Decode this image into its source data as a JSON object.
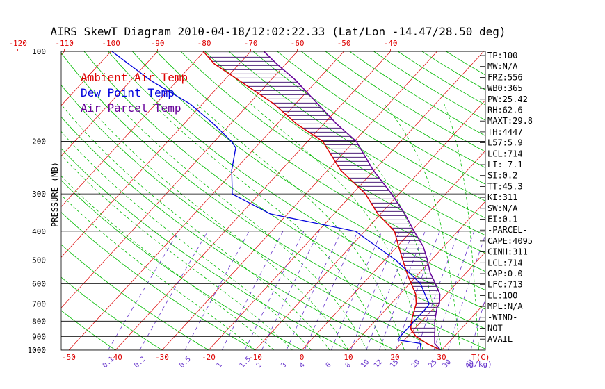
{
  "chart_data": {
    "type": "line",
    "title": "AIRS SkewT Diagram 2010-04-18/12:02:22.33 (Lat/Lon -14.47/28.50 deg)",
    "ylabel": "PRESSURE (MB)",
    "ylim": [
      1000,
      100
    ],
    "y_scale": "log",
    "xlim_bottom": [
      -50,
      40
    ],
    "pressure_ticks": [
      100,
      200,
      300,
      400,
      500,
      600,
      700,
      800,
      900,
      1000
    ],
    "top_temp_ticks": [
      "-120",
      "-110",
      "-100",
      "-90",
      "-80",
      "-70",
      "-60",
      "-50",
      "-40"
    ],
    "bottom_temp_ticks": [
      "-50",
      "-40",
      "-30",
      "-20",
      "-10",
      "0",
      "10",
      "20",
      "30"
    ],
    "bottom_temp_unit": "T(C)",
    "mixing_ratio_ticks": [
      "0.1",
      "0.2",
      "0.5",
      "1",
      "1.5",
      "2",
      "3",
      "4",
      "6",
      "8",
      "10",
      "12",
      "15",
      "20",
      "25",
      "30",
      "40"
    ],
    "mixing_ratio_unit": "(g/kg)",
    "legend": [
      {
        "label": "Ambient Air Temp",
        "color": "#dd0000"
      },
      {
        "label": "Dew Point Temp",
        "color": "#0000dd"
      },
      {
        "label": "Air Parcel Temp",
        "color": "#660099"
      }
    ],
    "series": [
      {
        "color": "#dd0000",
        "points": [
          [
            1000,
            29.8
          ],
          [
            950,
            25.5
          ],
          [
            900,
            21.8
          ],
          [
            850,
            19.2
          ],
          [
            800,
            17.8
          ],
          [
            750,
            16.6
          ],
          [
            700,
            15.4
          ],
          [
            650,
            13.4
          ],
          [
            600,
            10.4
          ],
          [
            550,
            7.2
          ],
          [
            500,
            3.9
          ],
          [
            450,
            0.3
          ],
          [
            400,
            -3.6
          ],
          [
            350,
            -10.6
          ],
          [
            300,
            -17.2
          ],
          [
            250,
            -27.2
          ],
          [
            200,
            -36.8
          ],
          [
            175,
            -45.8
          ],
          [
            150,
            -54.6
          ],
          [
            125,
            -66.8
          ],
          [
            110,
            -75.4
          ],
          [
            100,
            -80.2
          ]
        ]
      },
      {
        "color": "#0000dd",
        "points": [
          [
            1000,
            25.6
          ],
          [
            950,
            24.1
          ],
          [
            925,
            18.6
          ],
          [
            900,
            18.4
          ],
          [
            850,
            18.4
          ],
          [
            800,
            18.4
          ],
          [
            720,
            18.4
          ],
          [
            700,
            18.2
          ],
          [
            650,
            15.4
          ],
          [
            600,
            12.4
          ],
          [
            550,
            7.7
          ],
          [
            500,
            2.4
          ],
          [
            450,
            -4.4
          ],
          [
            400,
            -12.0
          ],
          [
            350,
            -33.7
          ],
          [
            300,
            -45.8
          ],
          [
            250,
            -50.6
          ],
          [
            210,
            -54.2
          ],
          [
            200,
            -56.4
          ],
          [
            175,
            -63.6
          ],
          [
            150,
            -72.6
          ],
          [
            125,
            -85.8
          ],
          [
            100,
            -99.8
          ]
        ]
      },
      {
        "color": "#660099",
        "points": [
          [
            1000,
            29.8
          ],
          [
            950,
            27.2
          ],
          [
            900,
            25.8
          ],
          [
            850,
            24.4
          ],
          [
            800,
            22.8
          ],
          [
            720,
            20.6
          ],
          [
            700,
            20.4
          ],
          [
            650,
            18.6
          ],
          [
            600,
            15.6
          ],
          [
            550,
            12.2
          ],
          [
            500,
            9.2
          ],
          [
            450,
            5.6
          ],
          [
            400,
            0.6
          ],
          [
            350,
            -4.8
          ],
          [
            300,
            -11.6
          ],
          [
            250,
            -20.2
          ],
          [
            200,
            -29.6
          ],
          [
            175,
            -37.2
          ],
          [
            150,
            -45.2
          ],
          [
            125,
            -54.6
          ],
          [
            110,
            -62.0
          ],
          [
            100,
            -67.2
          ]
        ]
      }
    ],
    "stats": [
      "TP:100",
      "MW:N/A",
      "FRZ:556",
      "WB0:365",
      "PW:25.42",
      "RH:62.6",
      "MAXT:29.8",
      "TH:4447",
      "L57:5.9",
      "LCL:714",
      "LI:-7.1",
      "SI:0.2",
      "TT:45.3",
      "KI:311",
      "SW:N/A",
      "EI:0.1",
      "-PARCEL-",
      "CAPE:4095",
      "CINH:311",
      "LCL:714",
      "CAP:0.0",
      "LFC:713",
      "EL:100",
      "MPL:N/A",
      "-WIND-",
      "NOT",
      "AVAIL"
    ],
    "grid": true
  },
  "colors": {
    "isotherm": "#dd0000",
    "dry_adiabat": "#00bb00",
    "moist_adiabat": "#00bb00",
    "mixing_ratio": "#6633cc",
    "isobar": "#000000",
    "hatch": "#330066"
  }
}
